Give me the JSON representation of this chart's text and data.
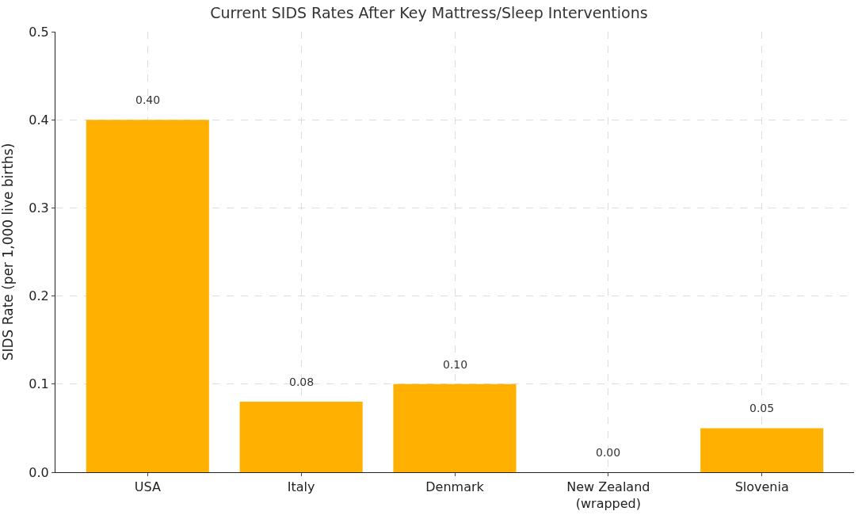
{
  "chart_data": {
    "type": "bar",
    "title": "Current SIDS Rates After Key Mattress/Sleep Interventions",
    "ylabel": "SIDS Rate (per 1,000 live births)",
    "categories": [
      "USA",
      "Italy",
      "Denmark",
      "New Zealand\n(wrapped)",
      "Slovenia"
    ],
    "values": [
      0.4,
      0.08,
      0.1,
      0.0,
      0.05
    ],
    "value_labels": [
      "0.40",
      "0.08",
      "0.10",
      "0.00",
      "0.05"
    ],
    "color": "#ffb000",
    "ylim": [
      0,
      0.5
    ],
    "yticks": [
      {
        "value": 0,
        "label": "0.0"
      },
      {
        "value": 0.1,
        "label": "0.1"
      },
      {
        "value": 0.2,
        "label": "0.2"
      },
      {
        "value": 0.3,
        "label": "0.3"
      },
      {
        "value": 0.4,
        "label": "0.4"
      },
      {
        "value": 0.5,
        "label": "0.5"
      }
    ],
    "grid": true
  }
}
